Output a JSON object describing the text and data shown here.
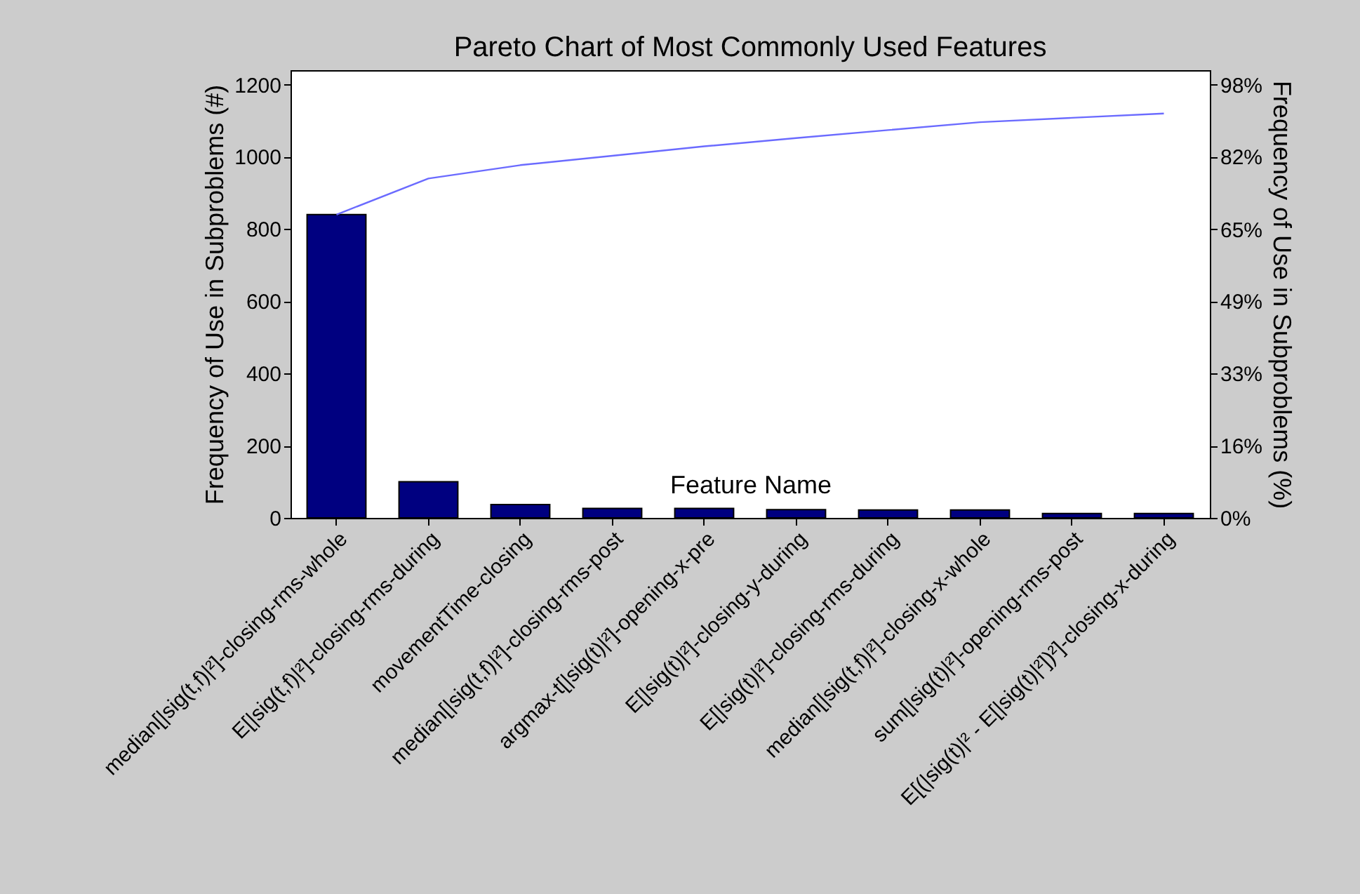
{
  "chart_data": {
    "type": "bar",
    "title": "Pareto Chart of Most Commonly Used Features",
    "xlabel": "Feature Name",
    "ylabel": "Frequency of Use in Subproblems (#)",
    "y2label": "Frequency of Use in Subproblems (%)",
    "categories": [
      "median[|sig(t,f)|²]-closing-rms-whole",
      "E[|sig(t,f)|²]-closing-rms-during",
      "movementTime-closing",
      "median[|sig(t,f)|²]-closing-rms-post",
      "argmax-t[|sig(t)|²]-opening-x-pre",
      "E[|sig(t)|²]-closing-y-during",
      "E[|sig(t)|²]-closing-rms-during",
      "median[|sig(t,f)|²]-closing-x-whole",
      "sum[|sig(t)|²]-opening-rms-post",
      "E[(|sig(t)|² - E[|sig(t)|²])²]-closing-x-during"
    ],
    "series": [
      {
        "color": "#000080",
        "values": [
          840,
          100,
          37,
          26,
          26,
          23,
          22,
          22,
          12,
          12
        ]
      },
      {
        "type": "line",
        "color": "#6b6bff",
        "values": [
          840,
          940,
          977,
          1003,
          1029,
          1052,
          1074,
          1096,
          1108,
          1120
        ]
      }
    ],
    "ylim": [
      0,
      1240
    ],
    "yticks": [
      0,
      200,
      400,
      600,
      800,
      1000,
      1200
    ],
    "y2lim": [
      0,
      101.3
    ],
    "y2ticks": [
      {
        "value": 0,
        "label": "0%"
      },
      {
        "value": 16.3,
        "label": "16%"
      },
      {
        "value": 32.7,
        "label": "33%"
      },
      {
        "value": 49,
        "label": "49%"
      },
      {
        "value": 65.3,
        "label": "65%"
      },
      {
        "value": 81.7,
        "label": "82%"
      },
      {
        "value": 98,
        "label": "98%"
      }
    ]
  }
}
